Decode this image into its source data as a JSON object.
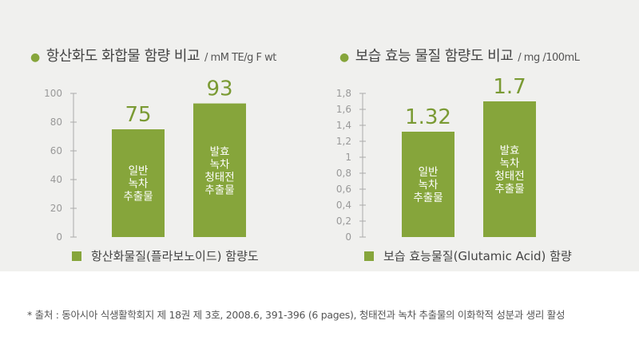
{
  "colors": {
    "bar": "#86a53b",
    "value": "#7a9a33",
    "panel": "#f0f0ee"
  },
  "chart_data": [
    {
      "type": "bar",
      "title": "항산화도 화합물 함량 비교",
      "unit": "/ mM TE/g F wt",
      "legend": "항산화물질(플라보노이드) 함량도",
      "ylim": [
        0,
        100
      ],
      "yticks": [
        "100",
        "80",
        "60",
        "40",
        "20",
        "0"
      ],
      "categories": [
        "일반 녹차 추출물",
        "발효 녹차 청태전 추출물"
      ],
      "bar_labels": [
        [
          "일반",
          "녹차",
          "추출물"
        ],
        [
          "발효",
          "녹차",
          "청태전",
          "추출물"
        ]
      ],
      "values": [
        75,
        93
      ],
      "value_labels": [
        "75",
        "93"
      ]
    },
    {
      "type": "bar",
      "title": "보습 효능 물질 함량도 비교",
      "unit": "/ mg /100mL",
      "legend": "보습 효능물질(Glutamic Acid) 함량",
      "ylim": [
        0,
        1.8
      ],
      "yticks": [
        "1,8",
        "1,6",
        "1,4",
        "1,2",
        "1",
        "0,8",
        "0,6",
        "0,4",
        "0,2",
        "0"
      ],
      "categories": [
        "일반 녹차 추출물",
        "발효 녹차 청태전 추출물"
      ],
      "bar_labels": [
        [
          "일반",
          "녹차",
          "추출물"
        ],
        [
          "발효",
          "녹차",
          "청태전",
          "추출물"
        ]
      ],
      "values": [
        1.32,
        1.7
      ],
      "value_labels": [
        "1.32",
        "1.7"
      ]
    }
  ],
  "footnote": "* 출처 : 동아시아 식생활학회지 제 18권 제 3호, 2008.6, 391-396 (6 pages), 청태전과 녹차 추출물의 이화학적 성분과 생리 활성"
}
